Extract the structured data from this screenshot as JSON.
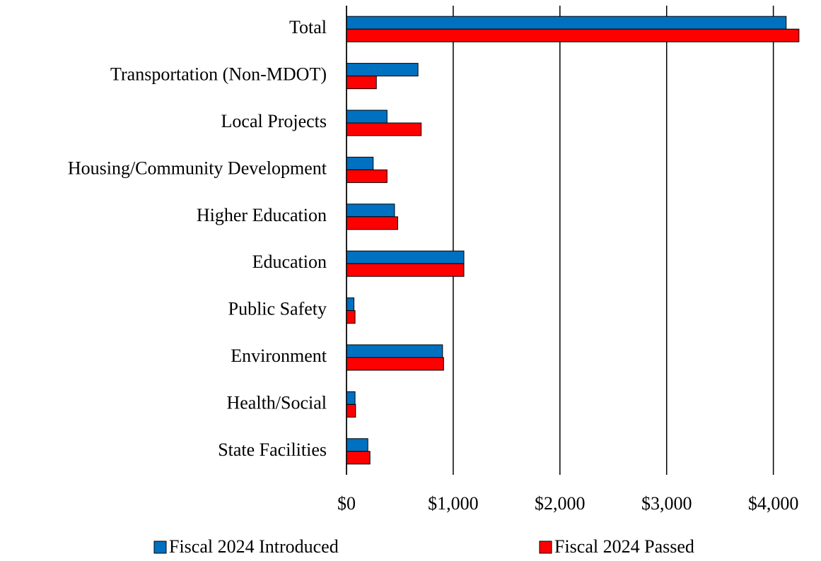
{
  "chart_data": {
    "type": "bar",
    "orientation": "horizontal",
    "categories": [
      "Total",
      "Transportation (Non-MDOT)",
      "Local Projects",
      "Housing/Community Development",
      "Higher Education",
      "Education",
      "Public Safety",
      "Environment",
      "Health/Social",
      "State Facilities"
    ],
    "series": [
      {
        "name": "Fiscal 2024 Introduced",
        "color": "#0070c0",
        "values": [
          4120,
          670,
          380,
          250,
          450,
          1100,
          70,
          900,
          80,
          200
        ]
      },
      {
        "name": "Fiscal 2024 Passed",
        "color": "#ff0000",
        "values": [
          4240,
          280,
          700,
          380,
          480,
          1100,
          80,
          910,
          85,
          220
        ]
      }
    ],
    "xlim": [
      0,
      4420
    ],
    "xticks": [
      {
        "value": 0,
        "label": "$0"
      },
      {
        "value": 1000,
        "label": "$1,000"
      },
      {
        "value": 2000,
        "label": "$2,000"
      },
      {
        "value": 3000,
        "label": "$3,000"
      },
      {
        "value": 4000,
        "label": "$4,000"
      }
    ],
    "grid": true,
    "legend": "bottom"
  }
}
